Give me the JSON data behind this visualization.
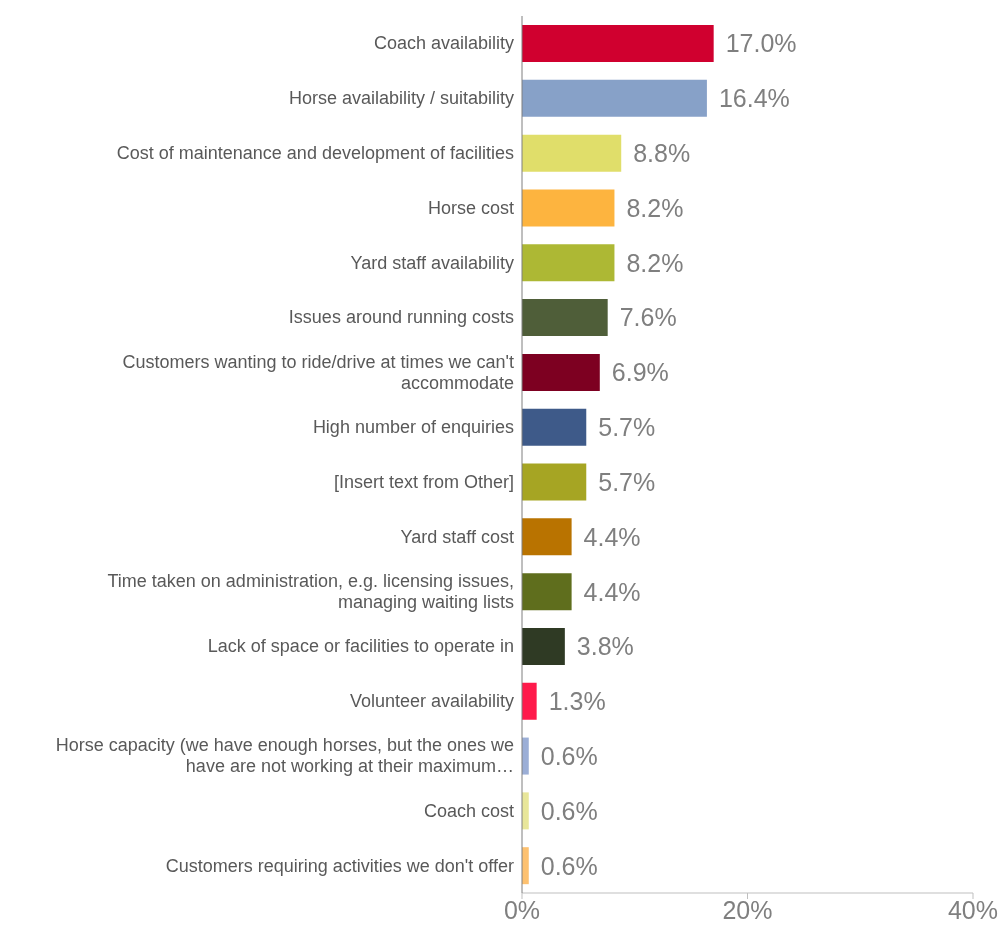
{
  "chart_data": {
    "type": "bar",
    "orientation": "horizontal",
    "categories": [
      "Coach availability",
      "Horse availability / suitability",
      "Cost of maintenance and development of facilities",
      "Horse cost",
      "Yard staff availability",
      "Issues around running costs",
      "Customers wanting to ride/drive at times we can't accommodate",
      "High number of enquiries",
      "[Insert text from Other]",
      "Yard staff cost",
      "Time taken on administration, e.g. licensing issues, managing waiting lists",
      "Lack of space or facilities to operate in",
      "Volunteer availability",
      "Horse capacity (we have enough horses, but the ones we have are not working at their maximum…",
      "Coach cost",
      "Customers requiring activities we don't offer"
    ],
    "values": [
      17.0,
      16.4,
      8.8,
      8.2,
      8.2,
      7.6,
      6.9,
      5.7,
      5.7,
      4.4,
      4.4,
      3.8,
      1.3,
      0.6,
      0.6,
      0.6
    ],
    "value_labels": [
      "17.0%",
      "16.4%",
      "8.8%",
      "8.2%",
      "8.2%",
      "7.6%",
      "6.9%",
      "5.7%",
      "5.7%",
      "4.4%",
      "4.4%",
      "3.8%",
      "1.3%",
      "0.6%",
      "0.6%",
      "0.6%"
    ],
    "colors": [
      "#d0002f",
      "#87a1c8",
      "#e0de6a",
      "#fdb43f",
      "#adb834",
      "#4f5e39",
      "#7d0021",
      "#3e5a89",
      "#a6a523",
      "#b97300",
      "#5f6e1d",
      "#2f3a24",
      "#ff1a4b",
      "#9baed6",
      "#e8e69a",
      "#fdc170"
    ],
    "xlim": [
      0,
      40
    ],
    "xticks": [
      {
        "value": 0,
        "label": "0%"
      },
      {
        "value": 20,
        "label": "20%"
      },
      {
        "value": 40,
        "label": "40%"
      }
    ],
    "grid": false,
    "legend": false
  }
}
